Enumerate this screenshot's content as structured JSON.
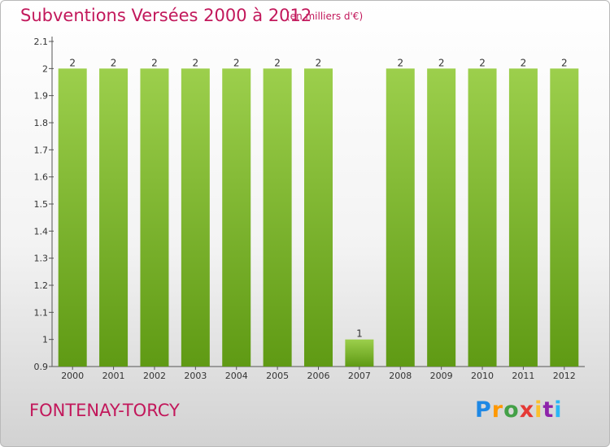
{
  "header": {
    "title": "Subventions Versées 2000 à 2012",
    "subtitle": "(en milliers d'€)"
  },
  "footer": {
    "commune": "FONTENAY-TORCY",
    "logo": [
      "P",
      "r",
      "o",
      "x",
      "i",
      "t",
      "i"
    ]
  },
  "colors": {
    "bar_top": "#9ccf4c",
    "bar_bottom": "#5f9a14",
    "title": "#c2185b"
  },
  "chart_data": {
    "type": "bar",
    "categories": [
      "2000",
      "2001",
      "2002",
      "2003",
      "2004",
      "2005",
      "2006",
      "2007",
      "2008",
      "2009",
      "2010",
      "2011",
      "2012"
    ],
    "values": [
      2,
      2,
      2,
      2,
      2,
      2,
      2,
      1,
      2,
      2,
      2,
      2,
      2
    ],
    "data_labels": [
      "2",
      "2",
      "2",
      "2",
      "2",
      "2",
      "2",
      "1",
      "2",
      "2",
      "2",
      "2",
      "2"
    ],
    "yticks": [
      0.9,
      1,
      1.1,
      1.2,
      1.3,
      1.4,
      1.5,
      1.6,
      1.7,
      1.8,
      1.9,
      2,
      2.1
    ],
    "ytick_labels": [
      "0.9",
      "1",
      "1.1",
      "1.2",
      "1.3",
      "1.4",
      "1.5",
      "1.6",
      "1.7",
      "1.8",
      "1.9",
      "2",
      "2.1"
    ],
    "ylim": [
      0.9,
      2.1
    ],
    "title": "Subventions Versées 2000 à 2012",
    "xlabel": "",
    "ylabel": "",
    "grid": false,
    "legend": "none"
  }
}
